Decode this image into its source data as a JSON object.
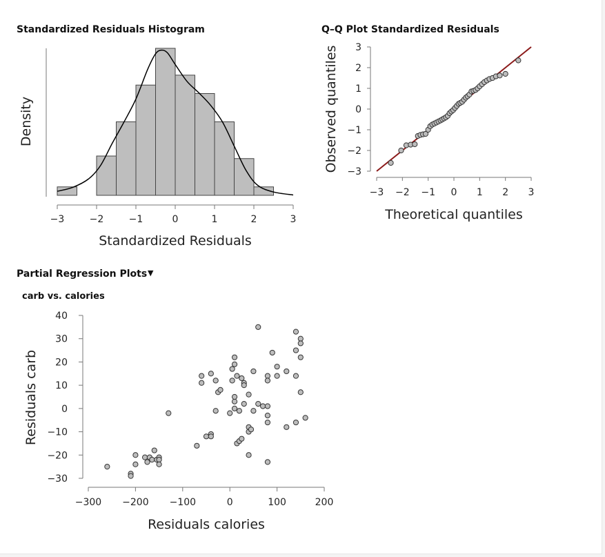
{
  "sections": {
    "histogram_title": "Standardized Residuals Histogram",
    "qq_title": "Q–Q Plot Standardized Residuals",
    "partial_title": "Partial Regression Plots",
    "partial_sub": "carb vs. calories"
  },
  "colors": {
    "bar_fill": "#bebebe",
    "point_fill": "#bdbdbd",
    "qq_line": "#8b1a1a"
  },
  "chart_data": [
    {
      "type": "bar",
      "title": "Standardized Residuals Histogram",
      "xlabel": "Standardized Residuals",
      "ylabel": "Density",
      "xlim": [
        -3,
        3
      ],
      "x_ticks": [
        "−3",
        "−2",
        "−1",
        "0",
        "1",
        "2",
        "3"
      ],
      "bins": [
        {
          "from": -3.0,
          "to": -2.5,
          "density": 0.023
        },
        {
          "from": -2.0,
          "to": -1.5,
          "density": 0.107
        },
        {
          "from": -1.5,
          "to": -1.0,
          "density": 0.2
        },
        {
          "from": -1.0,
          "to": -0.5,
          "density": 0.3
        },
        {
          "from": -0.5,
          "to": 0.0,
          "density": 0.4
        },
        {
          "from": 0.0,
          "to": 0.5,
          "density": 0.327
        },
        {
          "from": 0.5,
          "to": 1.0,
          "density": 0.277
        },
        {
          "from": 1.0,
          "to": 1.5,
          "density": 0.2
        },
        {
          "from": 1.5,
          "to": 2.0,
          "density": 0.1
        },
        {
          "from": 2.0,
          "to": 2.5,
          "density": 0.023
        }
      ],
      "density_curve": {
        "x": [
          -3.0,
          -2.6,
          -2.2,
          -1.9,
          -1.6,
          -1.3,
          -1.0,
          -0.7,
          -0.5,
          -0.35,
          -0.2,
          0.0,
          0.3,
          0.6,
          0.9,
          1.2,
          1.5,
          1.8,
          2.1,
          2.5,
          3.0
        ],
        "y": [
          0.011,
          0.022,
          0.045,
          0.081,
          0.142,
          0.2,
          0.262,
          0.343,
          0.385,
          0.395,
          0.388,
          0.356,
          0.31,
          0.279,
          0.245,
          0.2,
          0.134,
          0.068,
          0.027,
          0.009,
          0.001
        ]
      },
      "ylim": [
        0,
        0.4
      ]
    },
    {
      "type": "scatter",
      "title": "Q–Q Plot Standardized Residuals",
      "xlabel": "Theoretical quantiles",
      "ylabel": "Observed quantiles",
      "xlim": [
        -3,
        3
      ],
      "ylim": [
        -3,
        3
      ],
      "x_ticks": [
        "−3",
        "−2",
        "−1",
        "0",
        "1",
        "2",
        "3"
      ],
      "y_ticks": [
        "−3",
        "−2",
        "−1",
        "0",
        "1",
        "2",
        "3"
      ],
      "reference_line": {
        "from": [
          -3,
          -3
        ],
        "to": [
          3,
          3
        ]
      },
      "points": {
        "x": [
          -2.45,
          -2.05,
          -1.85,
          -1.68,
          -1.52,
          -1.4,
          -1.3,
          -1.2,
          -1.1,
          -1.0,
          -0.92,
          -0.84,
          -0.76,
          -0.68,
          -0.6,
          -0.52,
          -0.45,
          -0.38,
          -0.31,
          -0.24,
          -0.17,
          -0.1,
          -0.03,
          0.04,
          0.11,
          0.18,
          0.25,
          0.32,
          0.39,
          0.46,
          0.53,
          0.6,
          0.68,
          0.76,
          0.84,
          0.92,
          1.0,
          1.09,
          1.18,
          1.28,
          1.38,
          1.5,
          1.63,
          1.78,
          2.0,
          2.5
        ],
        "y": [
          -2.6,
          -2.0,
          -1.75,
          -1.72,
          -1.7,
          -1.3,
          -1.25,
          -1.22,
          -1.2,
          -1.0,
          -0.83,
          -0.75,
          -0.7,
          -0.65,
          -0.6,
          -0.55,
          -0.5,
          -0.45,
          -0.4,
          -0.33,
          -0.2,
          -0.12,
          -0.05,
          0.05,
          0.15,
          0.25,
          0.3,
          0.35,
          0.45,
          0.55,
          0.62,
          0.7,
          0.85,
          0.88,
          0.92,
          1.0,
          1.1,
          1.2,
          1.3,
          1.38,
          1.45,
          1.5,
          1.58,
          1.62,
          1.7,
          2.35
        ]
      }
    },
    {
      "type": "scatter",
      "title": "carb vs. calories",
      "xlabel": "Residuals calories",
      "ylabel": "Residuals carb",
      "xlim": [
        -300,
        200
      ],
      "ylim": [
        -30,
        40
      ],
      "x_ticks": [
        "−300",
        "−200",
        "−100",
        "0",
        "100",
        "200"
      ],
      "y_ticks": [
        "40",
        "30",
        "20",
        "10",
        "0",
        "−10",
        "−20",
        "−30"
      ],
      "points": {
        "x": [
          -260,
          -210,
          -210,
          -200,
          -200,
          -180,
          -175,
          -170,
          -165,
          -160,
          -155,
          -150,
          -150,
          -150,
          -130,
          -70,
          -60,
          -60,
          -50,
          -40,
          -40,
          -40,
          -30,
          -30,
          -25,
          -20,
          0,
          5,
          5,
          10,
          10,
          10,
          10,
          10,
          15,
          15,
          20,
          20,
          25,
          25,
          30,
          30,
          30,
          40,
          40,
          40,
          40,
          45,
          50,
          50,
          60,
          60,
          70,
          80,
          80,
          80,
          80,
          80,
          80,
          90,
          100,
          100,
          120,
          120,
          140,
          140,
          140,
          140,
          150,
          150,
          150,
          150,
          160
        ],
        "y": [
          -25,
          -28,
          -29,
          -24,
          -20,
          -21,
          -23,
          -21,
          -22,
          -18,
          -22,
          -21,
          -22,
          -24,
          -2,
          -16,
          14,
          11,
          -12,
          15,
          -11,
          -12,
          -1,
          12,
          7,
          8,
          -2,
          17,
          12,
          3,
          0,
          22,
          5,
          19,
          -15,
          14,
          -14,
          -1,
          13,
          -13,
          11,
          2,
          10,
          -20,
          -8,
          -10,
          6,
          -9,
          16,
          -1,
          35,
          2,
          1,
          14,
          -3,
          -23,
          -6,
          1,
          12,
          24,
          14,
          18,
          -8,
          16,
          33,
          14,
          25,
          -6,
          22,
          30,
          7,
          28,
          -4
        ]
      }
    }
  ]
}
